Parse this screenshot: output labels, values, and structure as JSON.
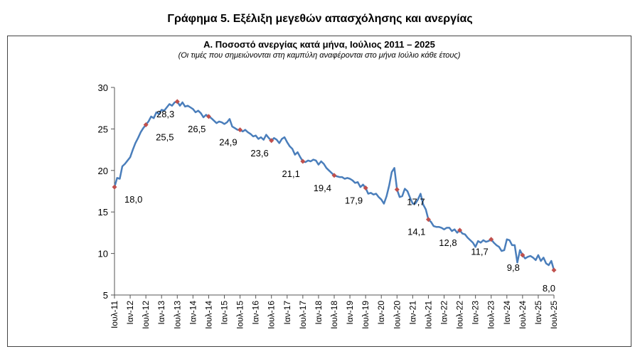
{
  "page_title": "Γράφημα 5. Εξέλιξη μεγεθών απασχόλησης και ανεργίας",
  "chart_data": {
    "type": "line",
    "title": "Α. Ποσοστό ανεργίας κατά μήνα, Ιούλιος 2011 – 2025",
    "subtitle": "(Οι τιμές που σημειώνονται στη καμπύλη αναφέρονται στο μήνα Ιούλιο κάθε έτους)",
    "xlabel": "",
    "ylabel": "",
    "ylim": [
      5,
      30
    ],
    "yticks": [
      5,
      10,
      15,
      20,
      25,
      30
    ],
    "xlim": [
      0,
      168
    ],
    "grid": false,
    "line_color": "#4a7ebb",
    "marker_color": "#c0504d",
    "x_ticks": [
      {
        "label": "Ιουλ-11",
        "x": 0
      },
      {
        "label": "Ιαν-12",
        "x": 6
      },
      {
        "label": "Ιουλ-12",
        "x": 12
      },
      {
        "label": "Ιαν-13",
        "x": 18
      },
      {
        "label": "Ιουλ-13",
        "x": 24
      },
      {
        "label": "Ιαν-14",
        "x": 30
      },
      {
        "label": "Ιουλ-14",
        "x": 36
      },
      {
        "label": "Ιαν-15",
        "x": 42
      },
      {
        "label": "Ιουλ-15",
        "x": 48
      },
      {
        "label": "Ιαν-16",
        "x": 54
      },
      {
        "label": "Ιουλ-16",
        "x": 60
      },
      {
        "label": "Ιαν-17",
        "x": 66
      },
      {
        "label": "Ιουλ-17",
        "x": 72
      },
      {
        "label": "Ιαν-18",
        "x": 78
      },
      {
        "label": "Ιουλ-18",
        "x": 84
      },
      {
        "label": "Ιαν-19",
        "x": 90
      },
      {
        "label": "Ιουλ-19",
        "x": 96
      },
      {
        "label": "Ιαν-20",
        "x": 102
      },
      {
        "label": "Ιουλ-20",
        "x": 108
      },
      {
        "label": "Ιαν-21",
        "x": 114
      },
      {
        "label": "Ιουλ-21",
        "x": 120
      },
      {
        "label": "Ιαν-22",
        "x": 126
      },
      {
        "label": "Ιουλ-22",
        "x": 132
      },
      {
        "label": "Ιαν-23",
        "x": 138
      },
      {
        "label": "Ιουλ-23",
        "x": 144
      },
      {
        "label": "Ιαν-24",
        "x": 150
      },
      {
        "label": "Ιουλ-24",
        "x": 156
      },
      {
        "label": "Ιαν-25",
        "x": 162
      },
      {
        "label": "Ιουλ-25",
        "x": 168
      }
    ],
    "series": [
      {
        "x": [
          0,
          1,
          2,
          3,
          4,
          5,
          6,
          7,
          8,
          9,
          10,
          11,
          12,
          13,
          14,
          15,
          16,
          17,
          18,
          19,
          20,
          21,
          22,
          23,
          24,
          25,
          26,
          27,
          28,
          29,
          30,
          31,
          32,
          33,
          34,
          35,
          36,
          37,
          38,
          39,
          40,
          41,
          42,
          43,
          44,
          45,
          46,
          47,
          48,
          49,
          50,
          51,
          52,
          53,
          54,
          55,
          56,
          57,
          58,
          59,
          60,
          61,
          62,
          63,
          64,
          65,
          66,
          67,
          68,
          69,
          70,
          71,
          72,
          73,
          74,
          75,
          76,
          77,
          78,
          79,
          80,
          81,
          82,
          83,
          84,
          85,
          86,
          87,
          88,
          89,
          90,
          91,
          92,
          93,
          94,
          95,
          96,
          97,
          98,
          99,
          100,
          101,
          102,
          103,
          104,
          105,
          106,
          107,
          108,
          109,
          110,
          111,
          112,
          113,
          114,
          115,
          116,
          117,
          118,
          119,
          120,
          121,
          122,
          123,
          124,
          125,
          126,
          127,
          128,
          129,
          130,
          131,
          132,
          133,
          134,
          135,
          136,
          137,
          138,
          139,
          140,
          141,
          142,
          143,
          144,
          145,
          146,
          147,
          148,
          149,
          150,
          151,
          152,
          153,
          154,
          155,
          156,
          157,
          158,
          159,
          160,
          161,
          162,
          163,
          164,
          165,
          166,
          167,
          168
        ],
        "values": [
          18.0,
          19.1,
          19.0,
          20.5,
          20.8,
          21.2,
          21.6,
          22.5,
          23.3,
          23.9,
          24.6,
          25.1,
          25.5,
          25.9,
          26.5,
          26.3,
          27.0,
          26.8,
          27.3,
          27.2,
          27.6,
          28.0,
          27.8,
          28.2,
          28.3,
          27.8,
          28.2,
          27.7,
          27.8,
          27.6,
          27.4,
          27.0,
          27.2,
          26.9,
          26.4,
          26.7,
          26.5,
          26.3,
          26.0,
          25.7,
          25.9,
          25.8,
          25.6,
          25.8,
          26.2,
          25.3,
          25.1,
          24.9,
          24.9,
          24.7,
          24.9,
          24.6,
          24.4,
          24.1,
          24.2,
          23.8,
          24.0,
          23.7,
          24.3,
          23.9,
          23.6,
          23.9,
          23.7,
          23.3,
          23.8,
          24.0,
          23.4,
          22.9,
          22.6,
          21.9,
          22.2,
          21.6,
          21.1,
          21.0,
          21.2,
          21.1,
          21.3,
          21.2,
          20.7,
          21.1,
          20.8,
          20.3,
          20.0,
          19.7,
          19.4,
          19.3,
          19.2,
          19.2,
          19.0,
          19.1,
          19.0,
          18.8,
          18.5,
          18.6,
          18.0,
          18.3,
          17.9,
          17.2,
          17.3,
          17.1,
          17.2,
          16.8,
          16.5,
          16.0,
          16.9,
          18.2,
          19.8,
          20.3,
          17.7,
          16.8,
          16.9,
          17.8,
          17.5,
          16.7,
          16.0,
          16.0,
          16.5,
          17.2,
          15.9,
          15.3,
          14.1,
          13.8,
          13.3,
          13.2,
          13.2,
          13.1,
          12.9,
          13.1,
          13.1,
          12.7,
          12.9,
          12.5,
          12.8,
          12.4,
          12.3,
          11.9,
          11.6,
          11.3,
          10.8,
          11.5,
          11.3,
          11.6,
          11.4,
          11.5,
          11.7,
          11.3,
          11.0,
          10.8,
          10.3,
          10.4,
          11.7,
          11.6,
          11.0,
          11.0,
          8.9,
          10.4,
          9.8,
          9.4,
          9.6,
          9.7,
          9.5,
          9.2,
          9.8,
          9.1,
          9.5,
          8.8,
          8.6,
          9.1,
          8.0
        ]
      }
    ],
    "annotations": [
      {
        "x": 0,
        "value": 18.0,
        "label": "18,0",
        "pos": "below-right"
      },
      {
        "x": 12,
        "value": 25.5,
        "label": "25,5",
        "pos": "below-right"
      },
      {
        "x": 24,
        "value": 28.3,
        "label": "28,3",
        "pos": "below-left"
      },
      {
        "x": 36,
        "value": 26.5,
        "label": "26,5",
        "pos": "below-left"
      },
      {
        "x": 48,
        "value": 24.9,
        "label": "24,9",
        "pos": "below-left"
      },
      {
        "x": 60,
        "value": 23.6,
        "label": "23,6",
        "pos": "below-left"
      },
      {
        "x": 72,
        "value": 21.1,
        "label": "21,1",
        "pos": "below-left"
      },
      {
        "x": 84,
        "value": 19.4,
        "label": "19,4",
        "pos": "below-left"
      },
      {
        "x": 96,
        "value": 17.9,
        "label": "17,9",
        "pos": "below-left"
      },
      {
        "x": 108,
        "value": 17.7,
        "label": "17,7",
        "pos": "below-right"
      },
      {
        "x": 120,
        "value": 14.1,
        "label": "14,1",
        "pos": "below-left"
      },
      {
        "x": 132,
        "value": 12.8,
        "label": "12,8",
        "pos": "below-left"
      },
      {
        "x": 144,
        "value": 11.7,
        "label": "11,7",
        "pos": "below-left"
      },
      {
        "x": 156,
        "value": 9.8,
        "label": "9,8",
        "pos": "below-left"
      },
      {
        "x": 168,
        "value": 8.0,
        "label": "8,0",
        "pos": "below-left"
      }
    ]
  }
}
